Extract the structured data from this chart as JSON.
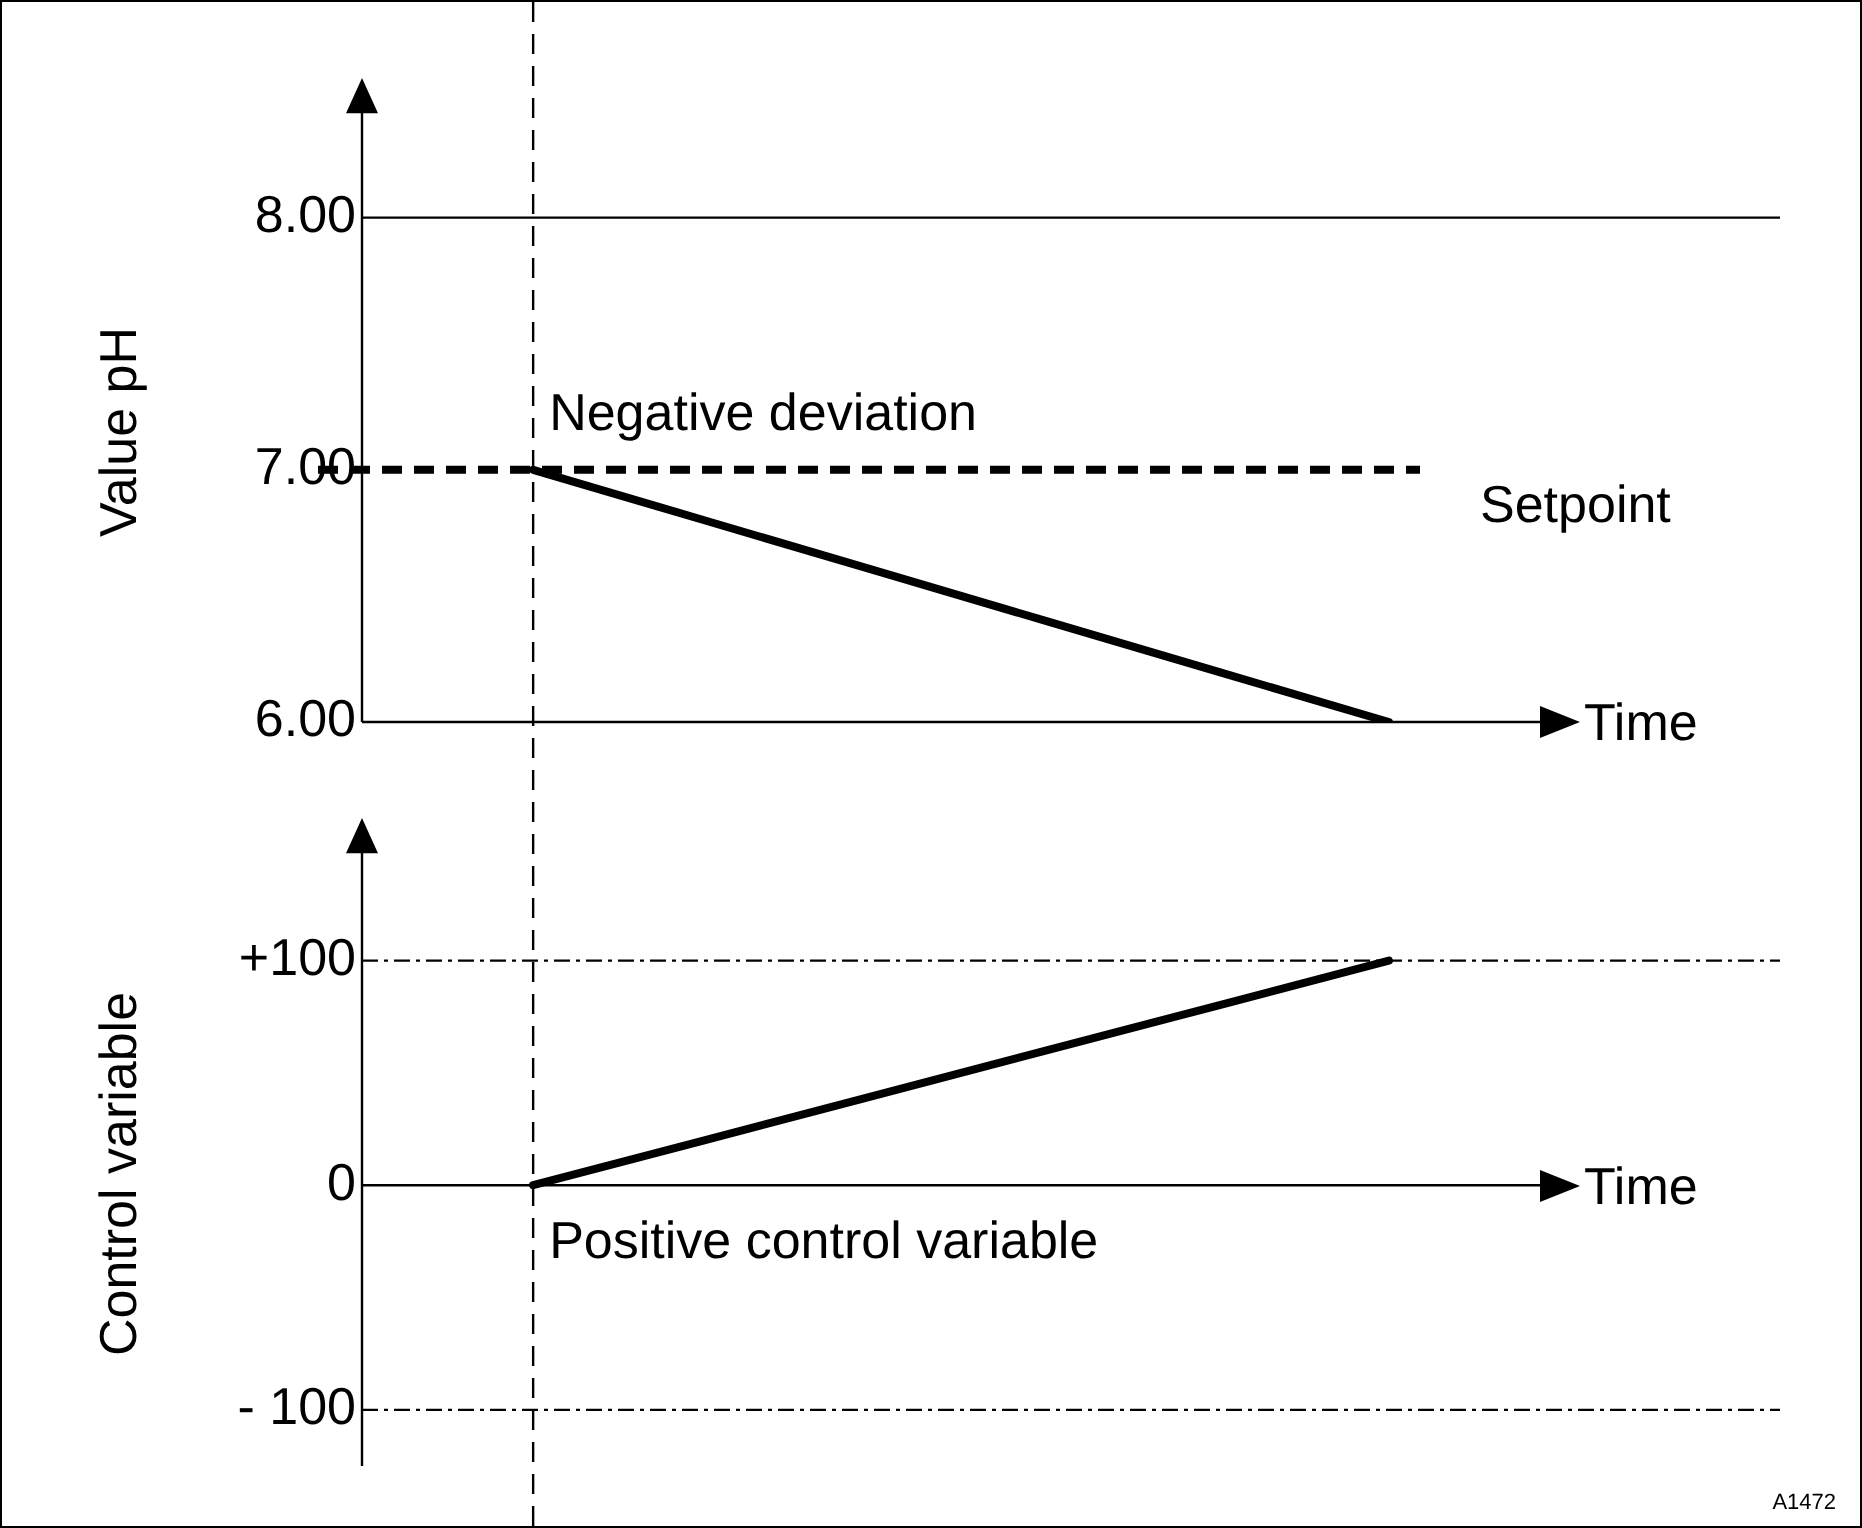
{
  "chart_data": [
    {
      "type": "line",
      "ylabel": "Value pH",
      "xlabel": "Time",
      "categories": [
        null,
        null,
        null,
        null,
        null,
        null,
        null,
        null
      ],
      "ylim": [
        6,
        8.3
      ],
      "yticks": [
        {
          "value": 6,
          "label": "6.00"
        },
        {
          "value": 7,
          "label": "7.00"
        },
        {
          "value": 8,
          "label": "8.00"
        }
      ],
      "tick_labels": "y",
      "grid": false,
      "legend": false,
      "marker": "none",
      "series": [
        {
          "color": "#000000",
          "values": [
            null,
            7,
            6.8,
            6.6,
            6.4,
            6.2,
            6,
            null
          ]
        }
      ],
      "ref_lines": [
        {
          "axis": "y",
          "value": 7,
          "label": "Setpoint",
          "line_style": "dashed",
          "color": "#000000"
        },
        {
          "axis": "y",
          "value": 8,
          "line_style": "solid",
          "color": "#000000"
        },
        {
          "axis": "x",
          "line_style": "dashed",
          "color": "#000000"
        }
      ],
      "annotations": [
        "Negative deviation"
      ]
    },
    {
      "type": "line",
      "ylabel": "Control variable",
      "xlabel": "Time",
      "categories": [
        null,
        null,
        null,
        null,
        null,
        null,
        null,
        null
      ],
      "ylim": [
        -125,
        135
      ],
      "yticks": [
        {
          "value": -100,
          "label": "- 100"
        },
        0,
        {
          "value": 100,
          "label": "+100"
        }
      ],
      "tick_labels": "y",
      "grid": false,
      "legend": false,
      "marker": "none",
      "series": [
        {
          "color": "#000000",
          "values": [
            null,
            0,
            20,
            40,
            60,
            80,
            100,
            null
          ]
        }
      ],
      "ref_lines": [
        {
          "axis": "y",
          "value": 100,
          "line_style": "dotted",
          "color": "#000000"
        },
        {
          "axis": "y",
          "value": -100,
          "line_style": "dotted",
          "color": "#000000"
        },
        {
          "axis": "x",
          "line_style": "dashed",
          "color": "#000000"
        }
      ],
      "annotations": [
        "Positive control variable",
        "A1472"
      ]
    }
  ]
}
